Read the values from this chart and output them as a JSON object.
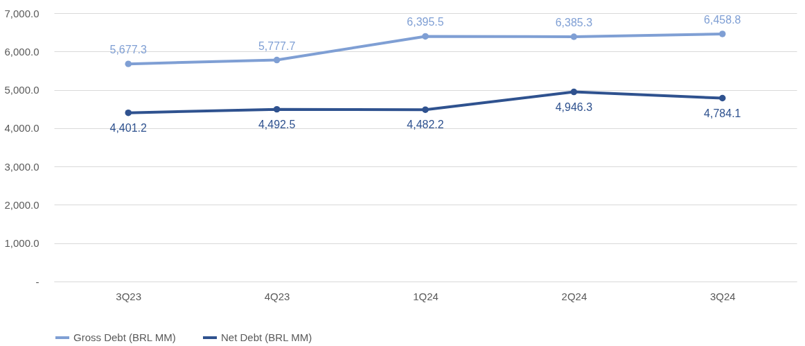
{
  "chart_data": {
    "type": "line",
    "categories": [
      "3Q23",
      "4Q23",
      "1Q24",
      "2Q24",
      "3Q24"
    ],
    "series": [
      {
        "name": "Gross Debt (BRL MM)",
        "color": "#7f9fd4",
        "values": [
          5677.3,
          5777.7,
          6395.5,
          6385.3,
          6458.8
        ],
        "value_labels": [
          "5,677.3",
          "5,777.7",
          "6,395.5",
          "6,385.3",
          "6,458.8"
        ]
      },
      {
        "name": "Net Debt (BRL MM)",
        "color": "#2f528f",
        "values": [
          4401.2,
          4492.5,
          4482.2,
          4946.3,
          4784.1
        ],
        "value_labels": [
          "4,401.2",
          "4,492.5",
          "4,482.2",
          "4,946.3",
          "4,784.1"
        ]
      }
    ],
    "ylim": [
      0,
      7000
    ],
    "yticks": [
      {
        "value": 0,
        "label": "-"
      },
      {
        "value": 1000,
        "label": "1,000.0"
      },
      {
        "value": 2000,
        "label": "2,000.0"
      },
      {
        "value": 3000,
        "label": "3,000.0"
      },
      {
        "value": 4000,
        "label": "4,000.0"
      },
      {
        "value": 5000,
        "label": "5,000.0"
      },
      {
        "value": 6000,
        "label": "6,000.0"
      },
      {
        "value": 7000,
        "label": "7,000.0"
      }
    ],
    "grid": "y",
    "legend": "bottom",
    "marker": "circle",
    "line_style": "solid"
  }
}
